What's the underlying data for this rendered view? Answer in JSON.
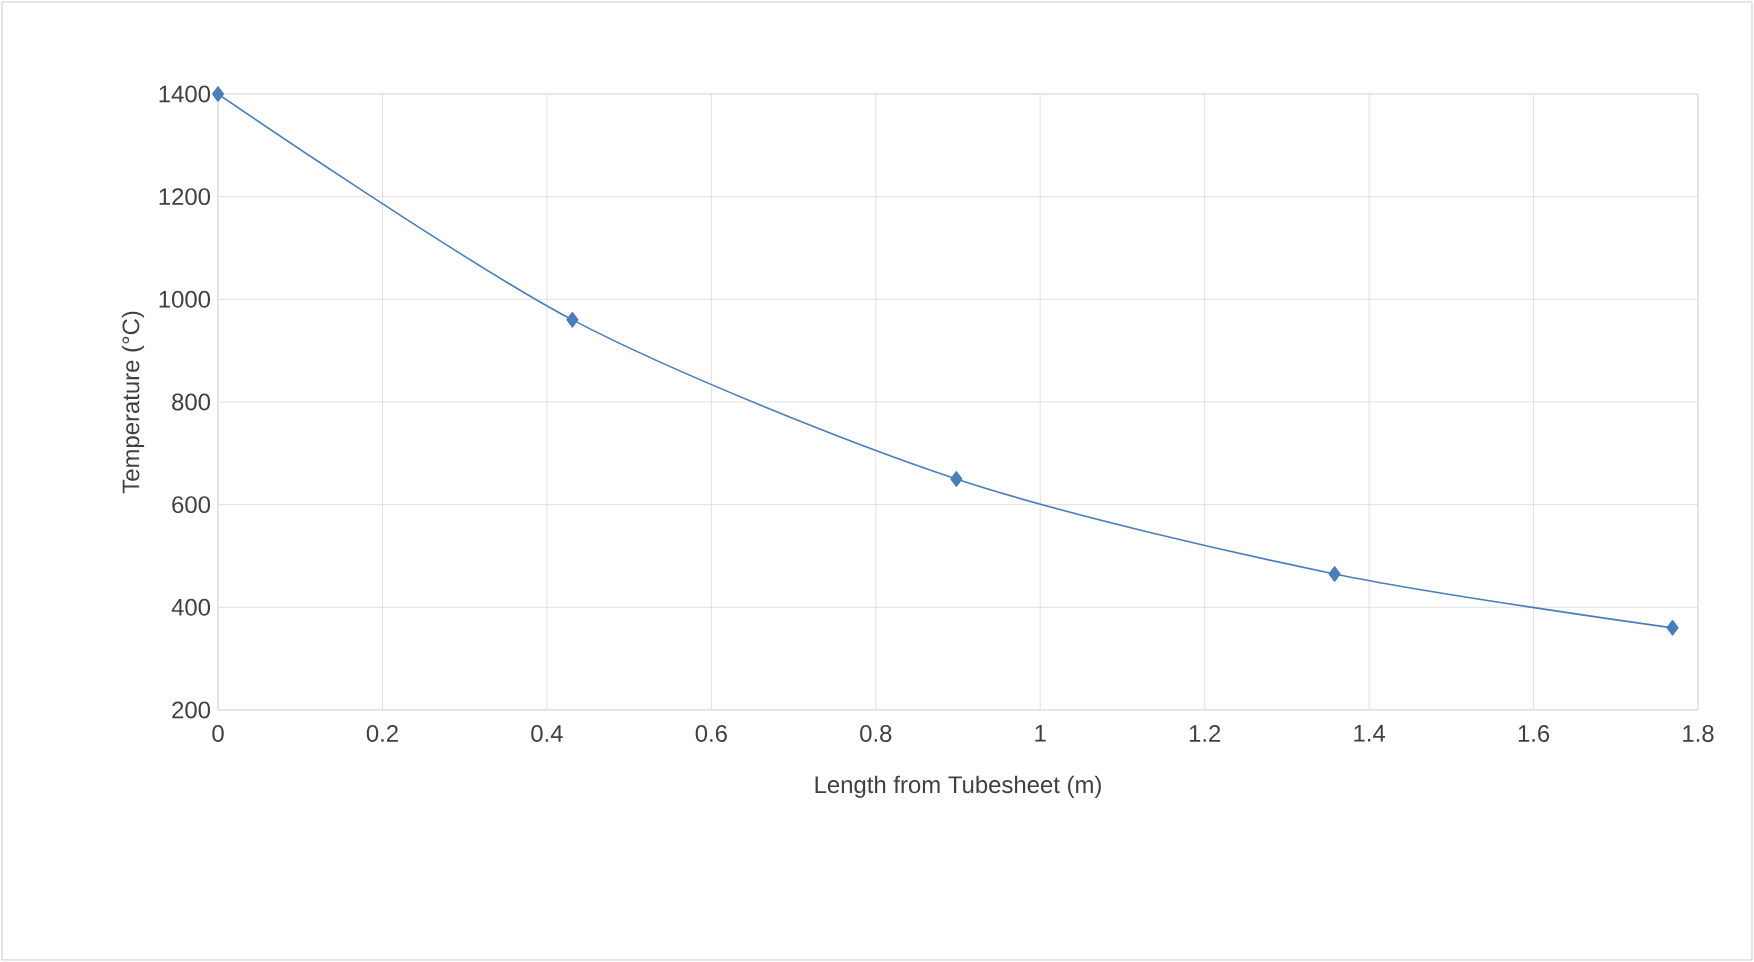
{
  "chart_data": {
    "type": "line",
    "xlabel": "Length from Tubesheet (m)",
    "ylabel": "Temperature (°C)",
    "x": [
      0,
      0.431,
      0.898,
      1.358,
      1.769
    ],
    "series": [
      {
        "color": "#4a7ebb",
        "values": [
          1400,
          960,
          650,
          465,
          360
        ]
      }
    ],
    "xlim": [
      0,
      1.8
    ],
    "ylim": [
      200,
      1400
    ],
    "xticks": [
      0,
      0.2,
      0.4,
      0.6,
      0.8,
      1,
      1.2,
      1.4,
      1.6,
      1.8
    ],
    "yticks": [
      200,
      400,
      600,
      800,
      1000,
      1200,
      1400
    ],
    "grid": true,
    "marker": "diamond",
    "line_style": "solid"
  }
}
